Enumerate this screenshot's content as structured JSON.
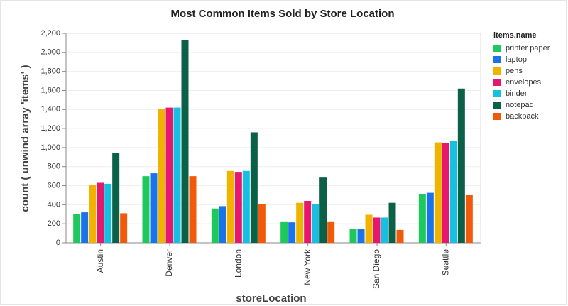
{
  "chart_data": {
    "type": "bar",
    "title": "Most Common Items Sold by Store Location",
    "x_label": "storeLocation",
    "y_label": "count ( unwind array 'items' )",
    "legend_title": "items.name",
    "categories": [
      "Austin",
      "Denver",
      "London",
      "New York",
      "San Diego",
      "Seattle"
    ],
    "series": [
      {
        "name": "printer paper",
        "color": "#1ec85a",
        "values": [
          300,
          700,
          360,
          225,
          145,
          515
        ]
      },
      {
        "name": "laptop",
        "color": "#1a73e8",
        "values": [
          320,
          730,
          385,
          215,
          145,
          525
        ]
      },
      {
        "name": "pens",
        "color": "#f0b400",
        "values": [
          605,
          1405,
          755,
          420,
          295,
          1055
        ]
      },
      {
        "name": "envelopes",
        "color": "#e8176e",
        "values": [
          630,
          1420,
          745,
          440,
          265,
          1045
        ]
      },
      {
        "name": "binder",
        "color": "#17c0e0",
        "values": [
          620,
          1420,
          755,
          405,
          265,
          1070
        ]
      },
      {
        "name": "notepad",
        "color": "#0b6048",
        "values": [
          945,
          2130,
          1160,
          685,
          420,
          1620
        ]
      },
      {
        "name": "backpack",
        "color": "#f05a0a",
        "values": [
          310,
          700,
          405,
          225,
          135,
          500
        ]
      }
    ],
    "ylim": [
      0,
      2200
    ],
    "yticks": [
      0,
      200,
      400,
      600,
      800,
      {
        "value": 1000,
        "label": "1,000"
      },
      {
        "value": 1200,
        "label": "1,200"
      },
      {
        "value": 1400,
        "label": "1,400"
      },
      {
        "value": 1600,
        "label": "1,600"
      },
      {
        "value": 1800,
        "label": "1,800"
      },
      {
        "value": 2000,
        "label": "2,000"
      },
      {
        "value": 2200,
        "label": "2,200"
      }
    ],
    "grid": true,
    "legend_position": "right"
  }
}
